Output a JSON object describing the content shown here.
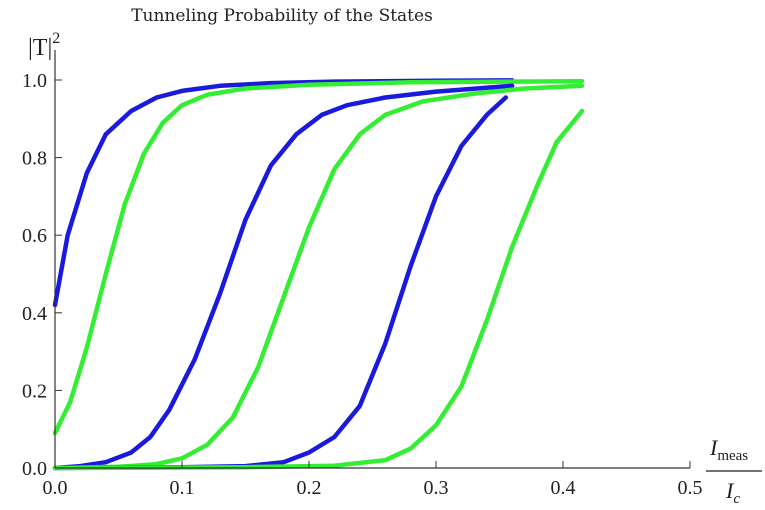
{
  "chart_data": {
    "type": "line",
    "title": "Tunneling Probability of the States",
    "ylabel": {
      "main": "|T|",
      "sup": "2"
    },
    "xlabel": {
      "numerator": "I",
      "numerator_sub": "meas",
      "denominator": "I",
      "denominator_sub": "c"
    },
    "xlim": [
      0,
      0.5
    ],
    "ylim": [
      0,
      1.0
    ],
    "x_ticks": [
      0.0,
      0.1,
      0.2,
      0.3,
      0.4,
      0.5
    ],
    "x_tick_labels": [
      "0.0",
      "0.1",
      "0.2",
      "0.3",
      "0.4",
      "0.5"
    ],
    "y_ticks": [
      0.0,
      0.2,
      0.4,
      0.6,
      0.8,
      1.0
    ],
    "y_tick_labels": [
      "0.0",
      "0.2",
      "0.4",
      "0.6",
      "0.8",
      "1.0"
    ],
    "grid": false,
    "series": [
      {
        "color": "#1a1adc",
        "points": [
          [
            0.0,
            0.42
          ],
          [
            0.01,
            0.6
          ],
          [
            0.025,
            0.76
          ],
          [
            0.04,
            0.86
          ],
          [
            0.06,
            0.92
          ],
          [
            0.08,
            0.955
          ],
          [
            0.1,
            0.972
          ],
          [
            0.13,
            0.985
          ],
          [
            0.17,
            0.992
          ],
          [
            0.22,
            0.996
          ],
          [
            0.3,
            0.998
          ],
          [
            0.36,
            0.999
          ]
        ]
      },
      {
        "color": "#33ee33",
        "points": [
          [
            0.0,
            0.09
          ],
          [
            0.012,
            0.17
          ],
          [
            0.025,
            0.31
          ],
          [
            0.04,
            0.5
          ],
          [
            0.055,
            0.68
          ],
          [
            0.07,
            0.81
          ],
          [
            0.085,
            0.89
          ],
          [
            0.1,
            0.935
          ],
          [
            0.12,
            0.962
          ],
          [
            0.15,
            0.978
          ],
          [
            0.2,
            0.988
          ],
          [
            0.28,
            0.994
          ],
          [
            0.36,
            0.996
          ],
          [
            0.415,
            0.997
          ]
        ]
      },
      {
        "color": "#1a1adc",
        "points": [
          [
            0.0,
            0.0
          ],
          [
            0.02,
            0.005
          ],
          [
            0.04,
            0.015
          ],
          [
            0.06,
            0.04
          ],
          [
            0.075,
            0.08
          ],
          [
            0.09,
            0.15
          ],
          [
            0.11,
            0.28
          ],
          [
            0.13,
            0.45
          ],
          [
            0.15,
            0.64
          ],
          [
            0.17,
            0.78
          ],
          [
            0.19,
            0.86
          ],
          [
            0.21,
            0.91
          ],
          [
            0.23,
            0.935
          ],
          [
            0.26,
            0.955
          ],
          [
            0.3,
            0.97
          ],
          [
            0.36,
            0.985
          ]
        ]
      },
      {
        "color": "#33ee33",
        "points": [
          [
            0.0,
            0.0
          ],
          [
            0.05,
            0.003
          ],
          [
            0.08,
            0.01
          ],
          [
            0.1,
            0.025
          ],
          [
            0.12,
            0.06
          ],
          [
            0.14,
            0.13
          ],
          [
            0.16,
            0.26
          ],
          [
            0.18,
            0.44
          ],
          [
            0.2,
            0.62
          ],
          [
            0.22,
            0.77
          ],
          [
            0.24,
            0.86
          ],
          [
            0.26,
            0.91
          ],
          [
            0.29,
            0.945
          ],
          [
            0.33,
            0.965
          ],
          [
            0.37,
            0.978
          ],
          [
            0.415,
            0.985
          ]
        ]
      },
      {
        "color": "#1a1adc",
        "points": [
          [
            0.0,
            0.0
          ],
          [
            0.1,
            0.002
          ],
          [
            0.15,
            0.005
          ],
          [
            0.18,
            0.015
          ],
          [
            0.2,
            0.04
          ],
          [
            0.22,
            0.08
          ],
          [
            0.24,
            0.16
          ],
          [
            0.26,
            0.32
          ],
          [
            0.28,
            0.52
          ],
          [
            0.3,
            0.7
          ],
          [
            0.32,
            0.83
          ],
          [
            0.34,
            0.91
          ],
          [
            0.355,
            0.955
          ]
        ]
      },
      {
        "color": "#33ee33",
        "points": [
          [
            0.0,
            0.0
          ],
          [
            0.15,
            0.002
          ],
          [
            0.22,
            0.006
          ],
          [
            0.26,
            0.02
          ],
          [
            0.28,
            0.05
          ],
          [
            0.3,
            0.11
          ],
          [
            0.32,
            0.21
          ],
          [
            0.34,
            0.38
          ],
          [
            0.36,
            0.57
          ],
          [
            0.38,
            0.73
          ],
          [
            0.395,
            0.84
          ],
          [
            0.415,
            0.92
          ]
        ]
      }
    ]
  }
}
